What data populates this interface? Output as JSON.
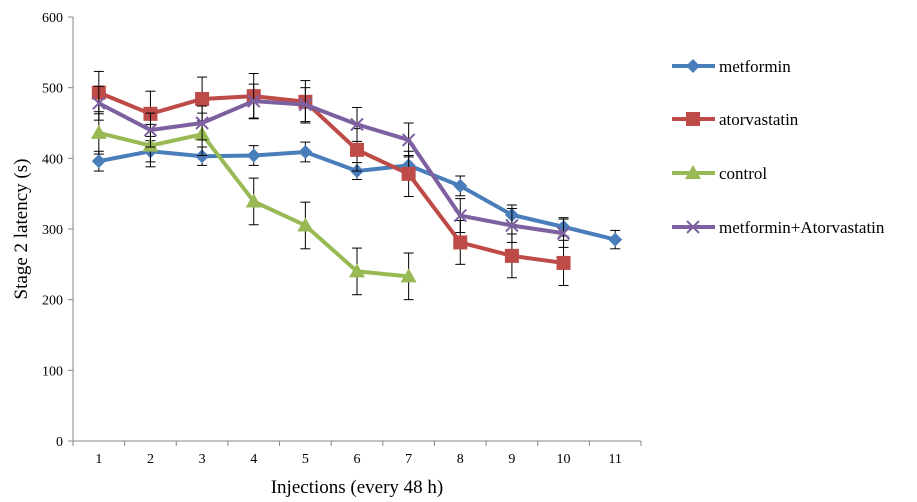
{
  "chart_data": {
    "type": "line",
    "title": "",
    "xlabel": "Injections (every 48 h)",
    "ylabel": "Stage 2 latency (s)",
    "ylim": [
      0,
      600
    ],
    "yticks": [
      "0",
      "100",
      "200",
      "300",
      "400",
      "500",
      "600"
    ],
    "x": [
      "1",
      "2",
      "3",
      "4",
      "5",
      "6",
      "7",
      "8",
      "9",
      "10",
      "11"
    ],
    "grid": false,
    "legend_position": "right",
    "series": [
      {
        "name": "metformin",
        "color": "#4a7ebb",
        "marker": "diamond",
        "values": [
          396,
          410,
          403,
          404,
          409,
          382,
          390,
          361,
          320,
          303,
          285
        ],
        "errors": [
          14,
          15,
          13,
          14,
          14,
          12,
          14,
          14,
          14,
          13,
          13
        ]
      },
      {
        "name": "atorvastatin",
        "color": "#be4b48",
        "marker": "square",
        "values": [
          493,
          463,
          484,
          488,
          480,
          412,
          378,
          281,
          262,
          252,
          null
        ],
        "errors": [
          30,
          32,
          31,
          32,
          30,
          30,
          32,
          31,
          31,
          32,
          null
        ]
      },
      {
        "name": "control",
        "color": "#98b954",
        "marker": "triangle",
        "values": [
          436,
          418,
          434,
          339,
          305,
          240,
          233,
          null,
          null,
          null,
          null
        ],
        "errors": [
          30,
          30,
          30,
          33,
          33,
          33,
          33,
          null,
          null,
          null,
          null
        ]
      },
      {
        "name": "metformin+Atorvastatin",
        "color": "#7d60a0",
        "marker": "x",
        "values": [
          478,
          440,
          450,
          481,
          476,
          448,
          426,
          319,
          305,
          294,
          null
        ],
        "errors": [
          24,
          24,
          24,
          24,
          24,
          24,
          24,
          24,
          24,
          20,
          null
        ]
      }
    ]
  }
}
